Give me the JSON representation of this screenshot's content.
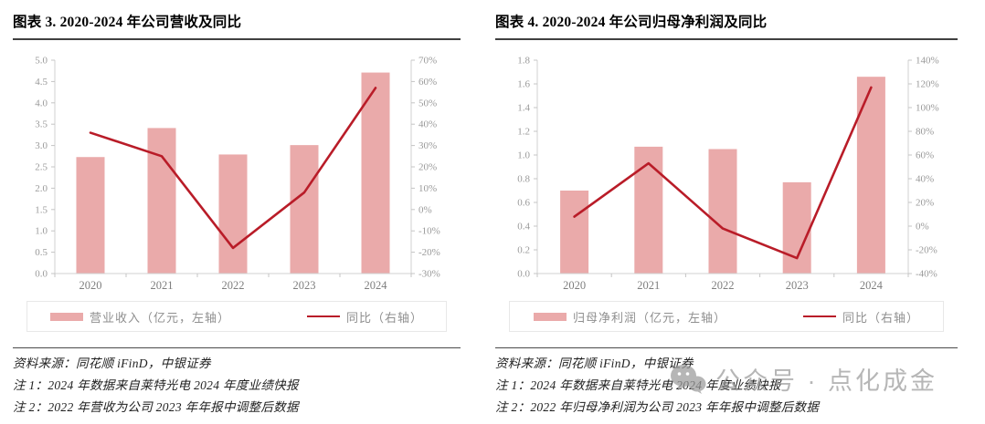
{
  "colors": {
    "bar_fill": "#EAAAAA",
    "line": "#B91C28",
    "axis_line": "#D0D0D0",
    "tick_mark": "#C4C4C4",
    "tick_label": "#9A9A9A",
    "x_label": "#7E7E7E",
    "legend_text": "#8F8F8F",
    "legend_border": "#E8E8E8",
    "title_text": "#000000",
    "rule": "#4A4A4A",
    "note_text": "#1F1F1F",
    "watermark": "#9A9A9A"
  },
  "chart_data": [
    {
      "type": "bar+line",
      "title": "图表 3. 2020-2024 年公司营收及同比",
      "categories": [
        "2020",
        "2021",
        "2022",
        "2023",
        "2024"
      ],
      "series": [
        {
          "name": "营业收入（亿元，左轴）",
          "type": "bar",
          "axis": "left",
          "values": [
            2.73,
            3.41,
            2.79,
            3.01,
            4.71
          ]
        },
        {
          "name": "同比（右轴）",
          "type": "line",
          "axis": "right",
          "unit": "%",
          "values": [
            36,
            25,
            -18,
            8,
            57
          ]
        }
      ],
      "left_axis": {
        "min": 0.0,
        "max": 5.0,
        "step": 0.5,
        "ticks": [
          "5.0",
          "4.5",
          "4.0",
          "3.5",
          "3.0",
          "2.5",
          "2.0",
          "1.5",
          "1.0",
          "0.5",
          "0.0"
        ]
      },
      "right_axis": {
        "min": -30,
        "max": 70,
        "step": 10,
        "ticks": [
          "70%",
          "60%",
          "50%",
          "40%",
          "30%",
          "20%",
          "10%",
          "0%",
          "-10%",
          "-20%",
          "-30%"
        ]
      },
      "grid": false,
      "legend_position": "bottom",
      "source": "资料来源：同花顺 iFinD，中银证券",
      "notes": [
        "注 1：2024 年数据来自莱特光电 2024 年度业绩快报",
        "注 2：2022 年营收为公司 2023 年年报中调整后数据"
      ]
    },
    {
      "type": "bar+line",
      "title": "图表 4. 2020-2024 年公司归母净利润及同比",
      "categories": [
        "2020",
        "2021",
        "2022",
        "2023",
        "2024"
      ],
      "series": [
        {
          "name": "归母净利润（亿元，左轴）",
          "type": "bar",
          "axis": "left",
          "values": [
            0.7,
            1.07,
            1.05,
            0.77,
            1.66
          ]
        },
        {
          "name": "同比（右轴）",
          "type": "line",
          "axis": "right",
          "unit": "%",
          "values": [
            8,
            53,
            -2,
            -27,
            117
          ]
        }
      ],
      "left_axis": {
        "min": 0.0,
        "max": 1.8,
        "step": 0.2,
        "ticks": [
          "1.8",
          "1.6",
          "1.4",
          "1.2",
          "1.0",
          "0.8",
          "0.6",
          "0.4",
          "0.2",
          "0.0"
        ]
      },
      "right_axis": {
        "min": -40,
        "max": 140,
        "step": 20,
        "ticks": [
          "140%",
          "120%",
          "100%",
          "80%",
          "60%",
          "40%",
          "20%",
          "0%",
          "-20%",
          "-40%"
        ]
      },
      "grid": false,
      "legend_position": "bottom",
      "source": "资料来源：同花顺 iFinD，中银证券",
      "notes": [
        "注 1：2024 年数据来自莱特光电 2024 年度业绩快报",
        "注 2：2022 年归母净利润为公司 2023 年年报中调整后数据"
      ]
    }
  ],
  "watermark": {
    "icon": "wechat-official-account-icon",
    "text": "公众号 · 点化成金"
  }
}
